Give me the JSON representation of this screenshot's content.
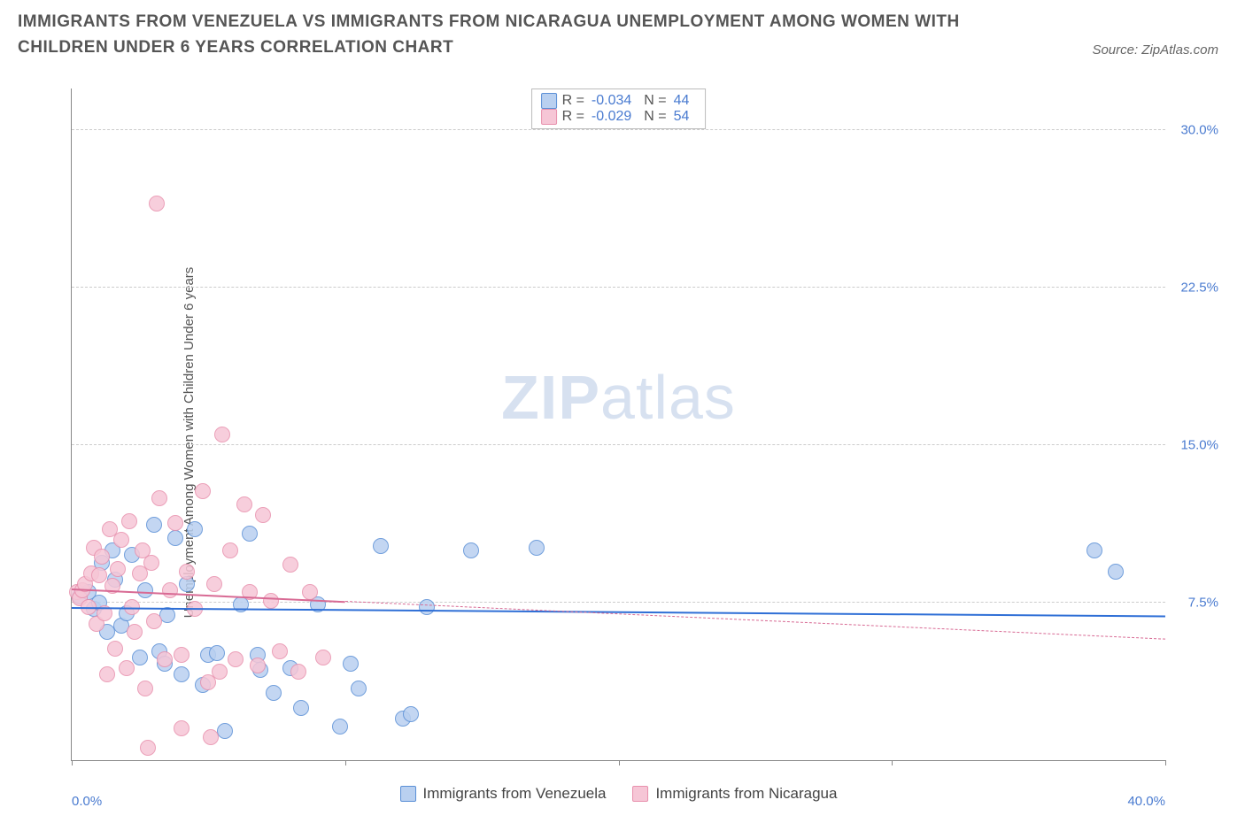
{
  "header": {
    "title": "IMMIGRANTS FROM VENEZUELA VS IMMIGRANTS FROM NICARAGUA UNEMPLOYMENT AMONG WOMEN WITH CHILDREN UNDER 6 YEARS CORRELATION CHART",
    "source": "Source: ZipAtlas.com"
  },
  "chart": {
    "type": "scatter",
    "ylabel": "Unemployment Among Women with Children Under 6 years",
    "xlim": [
      0,
      40
    ],
    "ylim": [
      0,
      32
    ],
    "xticks": [
      0,
      10,
      20,
      30,
      40
    ],
    "xtick_labels": [
      "0.0%",
      "",
      "",
      "",
      "40.0%"
    ],
    "yticks": [
      7.5,
      15.0,
      22.5,
      30.0
    ],
    "ytick_labels": [
      "7.5%",
      "15.0%",
      "22.5%",
      "30.0%"
    ],
    "grid_color": "#cccccc",
    "background_color": "#ffffff",
    "axis_color": "#888888",
    "watermark": "ZIPatlas",
    "marker_radius": 9,
    "series": [
      {
        "name": "Immigrants from Venezuela",
        "label": "Immigrants from Venezuela",
        "fill": "#b9d0f0",
        "stroke": "#5a8fd6",
        "R": "-0.034",
        "N": "44",
        "trend": {
          "y_at_x0": 7.3,
          "y_at_x40": 6.9,
          "solid_until_x": 40,
          "color": "#2f6fd6"
        },
        "points": [
          [
            0.3,
            7.8
          ],
          [
            0.6,
            8.0
          ],
          [
            0.8,
            7.2
          ],
          [
            1.0,
            7.5
          ],
          [
            1.1,
            9.4
          ],
          [
            1.3,
            6.1
          ],
          [
            1.5,
            10.0
          ],
          [
            1.6,
            8.6
          ],
          [
            1.8,
            6.4
          ],
          [
            2.0,
            7.0
          ],
          [
            2.2,
            9.8
          ],
          [
            2.5,
            4.9
          ],
          [
            2.7,
            8.1
          ],
          [
            3.0,
            11.2
          ],
          [
            3.2,
            5.2
          ],
          [
            3.4,
            4.6
          ],
          [
            3.5,
            6.9
          ],
          [
            3.8,
            10.6
          ],
          [
            4.0,
            4.1
          ],
          [
            4.2,
            8.4
          ],
          [
            4.5,
            11.0
          ],
          [
            4.8,
            3.6
          ],
          [
            5.0,
            5.0
          ],
          [
            5.3,
            5.1
          ],
          [
            5.6,
            1.4
          ],
          [
            6.2,
            7.4
          ],
          [
            6.5,
            10.8
          ],
          [
            6.9,
            4.3
          ],
          [
            7.4,
            3.2
          ],
          [
            8.0,
            4.4
          ],
          [
            8.4,
            2.5
          ],
          [
            9.0,
            7.4
          ],
          [
            9.8,
            1.6
          ],
          [
            10.2,
            4.6
          ],
          [
            10.5,
            3.4
          ],
          [
            11.3,
            10.2
          ],
          [
            12.1,
            2.0
          ],
          [
            12.4,
            2.2
          ],
          [
            13.0,
            7.3
          ],
          [
            14.6,
            10.0
          ],
          [
            17.0,
            10.1
          ],
          [
            37.4,
            10.0
          ],
          [
            38.2,
            9.0
          ],
          [
            6.8,
            5.0
          ]
        ]
      },
      {
        "name": "Immigrants from Nicaragua",
        "label": "Immigrants from Nicaragua",
        "fill": "#f6c6d6",
        "stroke": "#e890ad",
        "R": "-0.029",
        "N": "54",
        "trend": {
          "y_at_x0": 8.2,
          "y_at_x40": 5.8,
          "solid_until_x": 10,
          "color": "#d86a94"
        },
        "points": [
          [
            0.2,
            8.0
          ],
          [
            0.3,
            7.7
          ],
          [
            0.4,
            8.1
          ],
          [
            0.5,
            8.4
          ],
          [
            0.6,
            7.3
          ],
          [
            0.7,
            8.9
          ],
          [
            0.8,
            10.1
          ],
          [
            0.9,
            6.5
          ],
          [
            1.0,
            8.8
          ],
          [
            1.1,
            9.7
          ],
          [
            1.2,
            7.0
          ],
          [
            1.3,
            4.1
          ],
          [
            1.4,
            11.0
          ],
          [
            1.5,
            8.3
          ],
          [
            1.6,
            5.3
          ],
          [
            1.7,
            9.1
          ],
          [
            1.8,
            10.5
          ],
          [
            2.0,
            4.4
          ],
          [
            2.1,
            11.4
          ],
          [
            2.2,
            7.3
          ],
          [
            2.3,
            6.1
          ],
          [
            2.5,
            8.9
          ],
          [
            2.6,
            10.0
          ],
          [
            2.7,
            3.4
          ],
          [
            2.9,
            9.4
          ],
          [
            3.0,
            6.6
          ],
          [
            3.1,
            26.5
          ],
          [
            3.2,
            12.5
          ],
          [
            3.4,
            4.8
          ],
          [
            3.6,
            8.1
          ],
          [
            3.8,
            11.3
          ],
          [
            4.0,
            5.0
          ],
          [
            4.2,
            9.0
          ],
          [
            4.5,
            7.2
          ],
          [
            4.8,
            12.8
          ],
          [
            5.0,
            3.7
          ],
          [
            5.1,
            1.1
          ],
          [
            5.2,
            8.4
          ],
          [
            5.5,
            15.5
          ],
          [
            5.8,
            10.0
          ],
          [
            6.0,
            4.8
          ],
          [
            6.3,
            12.2
          ],
          [
            6.5,
            8.0
          ],
          [
            6.8,
            4.5
          ],
          [
            7.0,
            11.7
          ],
          [
            7.3,
            7.6
          ],
          [
            7.6,
            5.2
          ],
          [
            8.0,
            9.3
          ],
          [
            2.8,
            0.6
          ],
          [
            8.3,
            4.2
          ],
          [
            8.7,
            8.0
          ],
          [
            9.2,
            4.9
          ],
          [
            5.4,
            4.2
          ],
          [
            4.0,
            1.5
          ]
        ]
      }
    ],
    "legend_top": {
      "R_label": "R =",
      "N_label": "N ="
    }
  }
}
